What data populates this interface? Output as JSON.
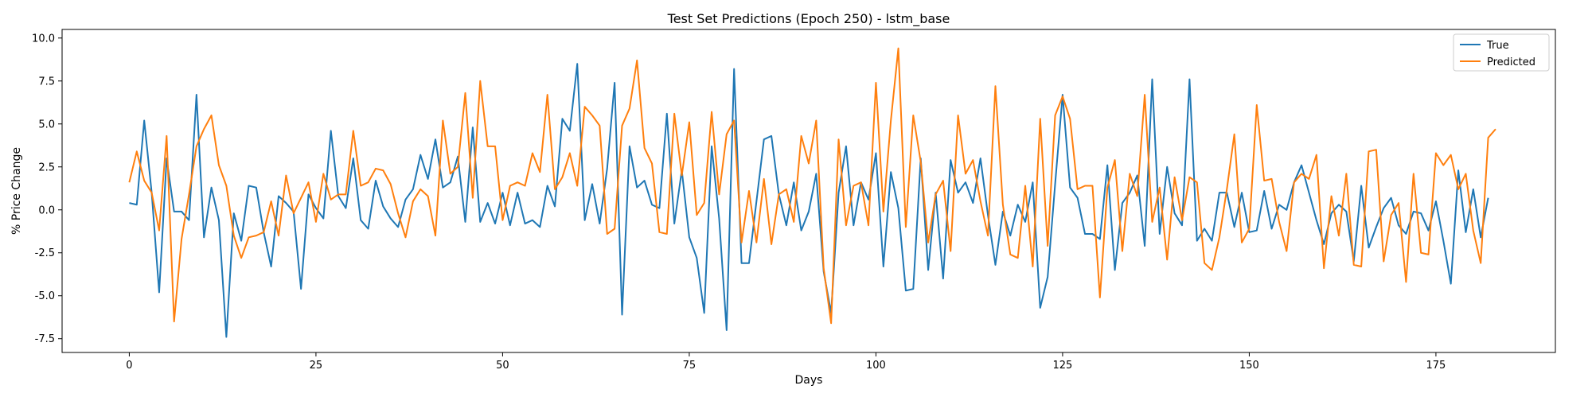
{
  "chart_data": {
    "type": "line",
    "title": "Test Set Predictions (Epoch 250) - lstm_base",
    "xlabel": "Days",
    "ylabel": "% Price Change",
    "xlim": [
      -9,
      191
    ],
    "ylim": [
      -8.3,
      10.5
    ],
    "xticks": [
      0,
      25,
      50,
      75,
      100,
      125,
      150,
      175
    ],
    "yticks": [
      -7.5,
      -5.0,
      -2.5,
      0.0,
      2.5,
      5.0,
      7.5,
      10.0
    ],
    "grid": false,
    "legend": "top-right",
    "series": [
      {
        "name": "True",
        "color": "#1f77b4",
        "values": [
          0.4,
          0.3,
          5.2,
          1.0,
          -4.8,
          3.0,
          -0.1,
          -0.1,
          -0.6,
          6.7,
          -1.6,
          1.3,
          -0.6,
          -7.4,
          -0.2,
          -1.8,
          1.4,
          1.3,
          -1.3,
          -3.3,
          0.8,
          0.4,
          -0.1,
          -4.6,
          0.9,
          0.1,
          -0.5,
          4.6,
          0.8,
          0.1,
          3.0,
          -0.6,
          -1.1,
          1.7,
          0.2,
          -0.5,
          -1.0,
          0.6,
          1.2,
          3.2,
          1.8,
          4.1,
          1.3,
          1.6,
          3.1,
          -0.7,
          4.8,
          -0.7,
          0.4,
          -0.8,
          1.0,
          -0.9,
          1.0,
          -0.8,
          -0.6,
          -1.0,
          1.4,
          0.2,
          5.3,
          4.6,
          8.5,
          -0.6,
          1.5,
          -0.8,
          2.4,
          7.4,
          -6.1,
          3.7,
          1.3,
          1.7,
          0.3,
          0.1,
          5.6,
          -0.8,
          2.3,
          -1.6,
          -2.8,
          -6.0,
          3.7,
          -0.5,
          -7.0,
          8.2,
          -3.1,
          -3.1,
          0.5,
          4.1,
          4.3,
          0.9,
          -0.9,
          1.6,
          -1.2,
          -0.1,
          2.1,
          -3.6,
          -6.0,
          1.0,
          3.7,
          -0.9,
          1.6,
          0.6,
          3.3,
          -3.3,
          2.2,
          0.1,
          -4.7,
          -4.6,
          3.0,
          -3.5,
          1.0,
          -4.0,
          2.9,
          1.0,
          1.6,
          0.4,
          3.0,
          -0.3,
          -3.2,
          -0.1,
          -1.5,
          0.3,
          -0.7,
          1.6,
          -5.7,
          -3.9,
          1.5,
          6.7,
          1.3,
          0.7,
          -1.4,
          -1.4,
          -1.7,
          2.6,
          -3.5,
          0.4,
          1.0,
          2.0,
          -2.1,
          7.6,
          -1.4,
          2.5,
          -0.2,
          -0.9,
          7.6,
          -1.8,
          -1.1,
          -1.8,
          1.0,
          1.0,
          -1.0,
          1.0,
          -1.3,
          -1.2,
          1.1,
          -1.1,
          0.3,
          0.0,
          1.6,
          2.6,
          1.0,
          -0.6,
          -2.0,
          -0.2,
          0.3,
          -0.1,
          -3.0,
          1.4,
          -2.2,
          -1.0,
          0.1,
          0.7,
          -0.9,
          -1.4,
          -0.1,
          -0.2,
          -1.2,
          0.5,
          -1.8,
          -4.3,
          2.3,
          -1.3,
          1.2,
          -1.6,
          0.7
        ]
      },
      {
        "name": "Predicted",
        "color": "#ff7f0e",
        "values": [
          1.6,
          3.4,
          1.7,
          1.0,
          -1.2,
          4.3,
          -6.5,
          -1.7,
          0.9,
          3.7,
          4.7,
          5.5,
          2.6,
          1.4,
          -1.5,
          -2.8,
          -1.6,
          -1.5,
          -1.3,
          0.5,
          -1.5,
          2.0,
          -0.2,
          0.7,
          1.6,
          -0.7,
          2.1,
          0.6,
          0.9,
          0.9,
          4.6,
          1.4,
          1.6,
          2.4,
          2.3,
          1.5,
          -0.2,
          -1.6,
          0.5,
          1.2,
          0.8,
          -1.5,
          5.2,
          2.1,
          2.5,
          6.8,
          0.7,
          7.5,
          3.7,
          3.7,
          -0.6,
          1.4,
          1.6,
          1.4,
          3.3,
          2.2,
          6.7,
          1.2,
          1.9,
          3.3,
          1.4,
          6.0,
          5.5,
          4.9,
          -1.4,
          -1.1,
          4.9,
          5.9,
          8.7,
          3.6,
          2.7,
          -1.3,
          -1.4,
          5.6,
          2.0,
          5.1,
          -0.3,
          0.4,
          5.7,
          0.9,
          4.4,
          5.2,
          -1.9,
          1.1,
          -1.9,
          1.8,
          -2.0,
          0.9,
          1.2,
          -0.7,
          4.3,
          2.7,
          5.2,
          -3.4,
          -6.6,
          4.1,
          -0.9,
          1.4,
          1.6,
          -0.9,
          7.4,
          -0.1,
          5.2,
          9.4,
          -1.0,
          5.5,
          2.8,
          -1.9,
          0.9,
          1.7,
          -2.4,
          5.5,
          2.1,
          2.9,
          0.5,
          -1.5,
          7.2,
          0.3,
          -2.6,
          -2.8,
          1.4,
          -3.3,
          5.3,
          -2.1,
          5.5,
          6.6,
          5.3,
          1.2,
          1.4,
          1.4,
          -5.1,
          1.3,
          2.9,
          -2.4,
          2.1,
          0.8,
          6.7,
          -0.7,
          1.3,
          -2.9,
          1.9,
          -0.6,
          1.9,
          1.6,
          -3.1,
          -3.5,
          -1.6,
          1.2,
          4.4,
          -1.9,
          -1.1,
          6.1,
          1.7,
          1.8,
          -0.7,
          -2.4,
          1.6,
          2.1,
          1.8,
          3.2,
          -3.4,
          0.8,
          -1.5,
          2.1,
          -3.2,
          -3.3,
          3.4,
          3.5,
          -3.0,
          -0.3,
          0.4,
          -4.2,
          2.1,
          -2.5,
          -2.6,
          3.3,
          2.6,
          3.2,
          1.2,
          2.1,
          -1.2,
          -3.1,
          4.2,
          4.7
        ]
      }
    ]
  }
}
